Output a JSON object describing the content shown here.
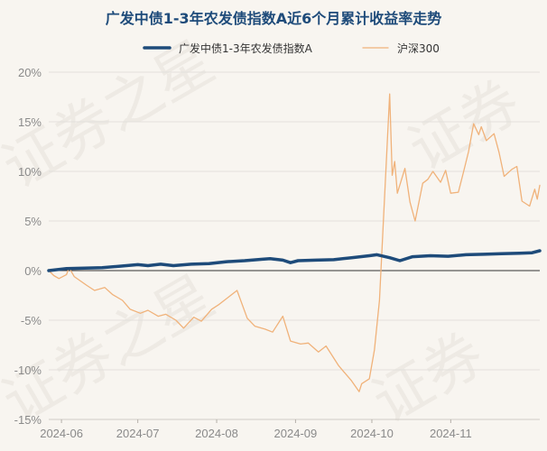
{
  "chart_data": {
    "type": "line",
    "title": "广发中债1-3年农发债指数A近6个月累计收益率走势",
    "ylim": [
      -15,
      20
    ],
    "y_ticks": [
      20,
      15,
      10,
      5,
      0,
      -5,
      -10,
      -15
    ],
    "y_tick_labels": [
      "20%",
      "15%",
      "10%",
      "5%",
      "0%",
      "-5%",
      "-10%",
      "-15%"
    ],
    "x_range": [
      "2024-05-27",
      "2024-12-06"
    ],
    "x_ticks": [
      "2024-06-01",
      "2024-07-01",
      "2024-08-01",
      "2024-09-01",
      "2024-10-01",
      "2024-11-01"
    ],
    "x_tick_labels": [
      "2024-06",
      "2024-07",
      "2024-08",
      "2024-09",
      "2024-10",
      "2024-11"
    ],
    "legend_position": "top-center",
    "series": [
      {
        "name": "广发中债1-3年农发债指数A",
        "color": "#1e4b7a",
        "points": [
          [
            "2024-05-27",
            0.0
          ],
          [
            "2024-06-03",
            0.2
          ],
          [
            "2024-06-10",
            0.25
          ],
          [
            "2024-06-17",
            0.3
          ],
          [
            "2024-06-24",
            0.45
          ],
          [
            "2024-07-01",
            0.6
          ],
          [
            "2024-07-05",
            0.5
          ],
          [
            "2024-07-10",
            0.65
          ],
          [
            "2024-07-15",
            0.5
          ],
          [
            "2024-07-22",
            0.65
          ],
          [
            "2024-07-29",
            0.7
          ],
          [
            "2024-08-05",
            0.9
          ],
          [
            "2024-08-12",
            1.0
          ],
          [
            "2024-08-19",
            1.15
          ],
          [
            "2024-08-22",
            1.2
          ],
          [
            "2024-08-27",
            1.05
          ],
          [
            "2024-08-30",
            0.8
          ],
          [
            "2024-09-02",
            1.0
          ],
          [
            "2024-09-09",
            1.05
          ],
          [
            "2024-09-16",
            1.1
          ],
          [
            "2024-09-23",
            1.3
          ],
          [
            "2024-09-30",
            1.5
          ],
          [
            "2024-10-03",
            1.6
          ],
          [
            "2024-10-08",
            1.3
          ],
          [
            "2024-10-12",
            1.0
          ],
          [
            "2024-10-17",
            1.4
          ],
          [
            "2024-10-24",
            1.5
          ],
          [
            "2024-10-31",
            1.45
          ],
          [
            "2024-11-07",
            1.6
          ],
          [
            "2024-11-14",
            1.65
          ],
          [
            "2024-11-21",
            1.7
          ],
          [
            "2024-11-28",
            1.75
          ],
          [
            "2024-12-03",
            1.8
          ],
          [
            "2024-12-06",
            2.0
          ]
        ]
      },
      {
        "name": "沪深300",
        "color": "#f0b27a",
        "points": [
          [
            "2024-05-27",
            0.0
          ],
          [
            "2024-05-29",
            -0.5
          ],
          [
            "2024-05-31",
            -0.8
          ],
          [
            "2024-06-03",
            -0.4
          ],
          [
            "2024-06-04",
            0.3
          ],
          [
            "2024-06-06",
            -0.6
          ],
          [
            "2024-06-11",
            -1.5
          ],
          [
            "2024-06-14",
            -2.0
          ],
          [
            "2024-06-18",
            -1.7
          ],
          [
            "2024-06-21",
            -2.4
          ],
          [
            "2024-06-25",
            -3.0
          ],
          [
            "2024-06-28",
            -3.9
          ],
          [
            "2024-07-02",
            -4.3
          ],
          [
            "2024-07-05",
            -4.0
          ],
          [
            "2024-07-09",
            -4.6
          ],
          [
            "2024-07-12",
            -4.4
          ],
          [
            "2024-07-16",
            -5.0
          ],
          [
            "2024-07-19",
            -5.8
          ],
          [
            "2024-07-23",
            -4.7
          ],
          [
            "2024-07-26",
            -5.1
          ],
          [
            "2024-07-30",
            -3.9
          ],
          [
            "2024-08-02",
            -3.4
          ],
          [
            "2024-08-06",
            -2.6
          ],
          [
            "2024-08-09",
            -2.0
          ],
          [
            "2024-08-13",
            -4.8
          ],
          [
            "2024-08-16",
            -5.6
          ],
          [
            "2024-08-20",
            -5.9
          ],
          [
            "2024-08-23",
            -6.2
          ],
          [
            "2024-08-27",
            -4.6
          ],
          [
            "2024-08-30",
            -7.1
          ],
          [
            "2024-09-03",
            -7.4
          ],
          [
            "2024-09-06",
            -7.3
          ],
          [
            "2024-09-10",
            -8.2
          ],
          [
            "2024-09-13",
            -7.6
          ],
          [
            "2024-09-18",
            -9.6
          ],
          [
            "2024-09-23",
            -11.1
          ],
          [
            "2024-09-26",
            -12.2
          ],
          [
            "2024-09-27",
            -11.4
          ],
          [
            "2024-09-30",
            -10.9
          ],
          [
            "2024-10-02",
            -8.0
          ],
          [
            "2024-10-04",
            -3.0
          ],
          [
            "2024-10-08",
            17.8
          ],
          [
            "2024-10-09",
            9.6
          ],
          [
            "2024-10-10",
            11.0
          ],
          [
            "2024-10-11",
            7.8
          ],
          [
            "2024-10-14",
            10.3
          ],
          [
            "2024-10-16",
            6.9
          ],
          [
            "2024-10-18",
            5.0
          ],
          [
            "2024-10-21",
            8.8
          ],
          [
            "2024-10-23",
            9.2
          ],
          [
            "2024-10-25",
            10.0
          ],
          [
            "2024-10-28",
            8.9
          ],
          [
            "2024-10-30",
            10.1
          ],
          [
            "2024-11-01",
            7.8
          ],
          [
            "2024-11-04",
            7.9
          ],
          [
            "2024-11-06",
            9.9
          ],
          [
            "2024-11-08",
            12.0
          ],
          [
            "2024-11-10",
            14.8
          ],
          [
            "2024-11-12",
            13.7
          ],
          [
            "2024-11-13",
            14.5
          ],
          [
            "2024-11-15",
            13.1
          ],
          [
            "2024-11-18",
            13.8
          ],
          [
            "2024-11-20",
            11.9
          ],
          [
            "2024-11-22",
            9.5
          ],
          [
            "2024-11-25",
            10.2
          ],
          [
            "2024-11-27",
            10.5
          ],
          [
            "2024-11-29",
            7.0
          ],
          [
            "2024-12-02",
            6.5
          ],
          [
            "2024-12-04",
            8.2
          ],
          [
            "2024-12-05",
            7.2
          ],
          [
            "2024-12-06",
            8.6
          ]
        ]
      }
    ]
  }
}
